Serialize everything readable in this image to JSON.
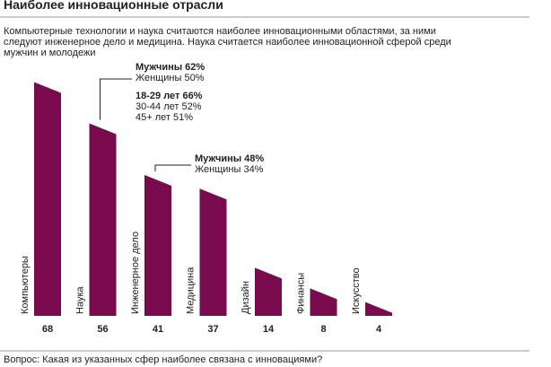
{
  "chart_data": {
    "type": "bar",
    "title": "Наиболее инновационные отрасли",
    "subtitle": [
      "Компьютерные технологии и наука считаются наиболее инновационными областями, за ними",
      "следуют  инженерное дело и медицина. Наука считается наиболее инновационной сферой среди",
      "мужчин и молодежи"
    ],
    "categories": [
      "Компьютеры",
      "Наука",
      "Инженерное дело",
      "Медицина",
      "Дизайн",
      "Финансы",
      "Искусство"
    ],
    "values": [
      68,
      56,
      41,
      37,
      14,
      8,
      4
    ],
    "color": "#7a0a4e",
    "annotations": [
      {
        "category": 1,
        "lines": [
          "Мужчины  62%",
          "Женщины  50%",
          "18-29 лет  66%",
          "30-44 лет 52%",
          "45+ лет  51%"
        ],
        "bold": [
          0,
          2
        ]
      },
      {
        "category": 2,
        "lines": [
          "Мужчины  48%",
          "Женщины 34%"
        ],
        "bold": [
          0
        ]
      }
    ],
    "footnote": "Вопрос: Какая из указанных сфер наиболее связана с инновациями?"
  }
}
